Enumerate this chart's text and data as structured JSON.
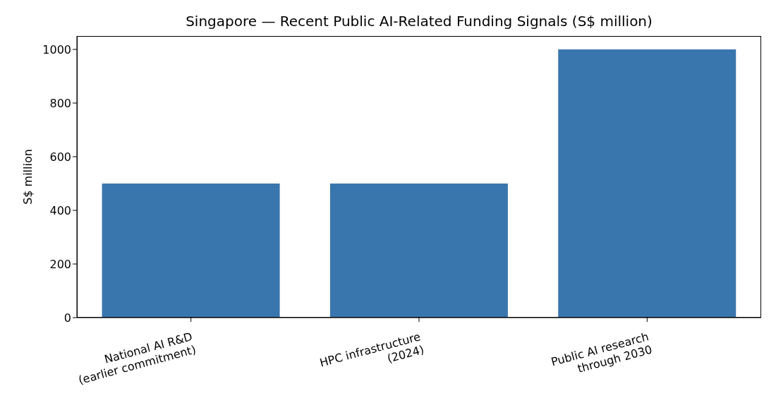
{
  "chart_data": {
    "type": "bar",
    "title": "Singapore — Recent Public AI-Related Funding Signals (S$ million)",
    "ylabel": "S$ million",
    "categories": [
      "National AI R&D\n(earlier commitment)",
      "HPC infrastructure\n(2024)",
      "Public AI research\nthrough 2030"
    ],
    "values": [
      500,
      500,
      1000
    ],
    "color": "#3a76ae",
    "ylim": [
      0,
      1050
    ],
    "yticks": [
      0,
      200,
      400,
      600,
      800,
      1000
    ],
    "grid": false
  }
}
